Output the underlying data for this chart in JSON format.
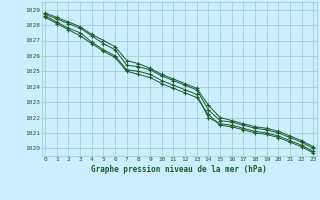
{
  "title": "Graphe pression niveau de la mer (hPa)",
  "background_color": "#cceeff",
  "grid_color": "#99cccc",
  "line_color": "#1a5c2a",
  "marker_color": "#1a5c2a",
  "x_ticks": [
    0,
    1,
    2,
    3,
    4,
    5,
    6,
    7,
    8,
    9,
    10,
    11,
    12,
    13,
    14,
    15,
    16,
    17,
    18,
    19,
    20,
    21,
    22,
    23
  ],
  "ylim": [
    1019.5,
    1029.5
  ],
  "yticks": [
    1020,
    1021,
    1022,
    1023,
    1024,
    1025,
    1026,
    1027,
    1028,
    1029
  ],
  "series": [
    [
      1028.6,
      1028.2,
      1027.8,
      1027.5,
      1026.9,
      1026.4,
      1026.0,
      1025.1,
      1025.0,
      1024.8,
      1024.4,
      1024.1,
      1023.8,
      1023.5,
      1022.0,
      1021.6,
      1021.5,
      1021.3,
      1021.1,
      1021.0,
      1020.8,
      1020.5,
      1020.2,
      1019.8
    ],
    [
      1028.7,
      1028.4,
      1028.1,
      1027.8,
      1027.3,
      1026.8,
      1026.4,
      1025.4,
      1025.3,
      1025.1,
      1024.7,
      1024.4,
      1024.1,
      1023.8,
      1022.5,
      1021.8,
      1021.7,
      1021.5,
      1021.3,
      1021.2,
      1021.0,
      1020.7,
      1020.4,
      1020.0
    ],
    [
      1028.5,
      1028.1,
      1027.7,
      1027.3,
      1026.8,
      1026.3,
      1025.9,
      1025.0,
      1024.8,
      1024.6,
      1024.2,
      1023.9,
      1023.6,
      1023.3,
      1022.2,
      1021.5,
      1021.4,
      1021.2,
      1021.0,
      1020.9,
      1020.7,
      1020.4,
      1020.1,
      1019.7
    ],
    [
      1028.8,
      1028.5,
      1028.2,
      1027.9,
      1027.4,
      1027.0,
      1026.6,
      1025.7,
      1025.5,
      1025.2,
      1024.8,
      1024.5,
      1024.2,
      1023.9,
      1022.8,
      1022.0,
      1021.8,
      1021.6,
      1021.4,
      1021.3,
      1021.1,
      1020.8,
      1020.5,
      1020.1
    ]
  ]
}
